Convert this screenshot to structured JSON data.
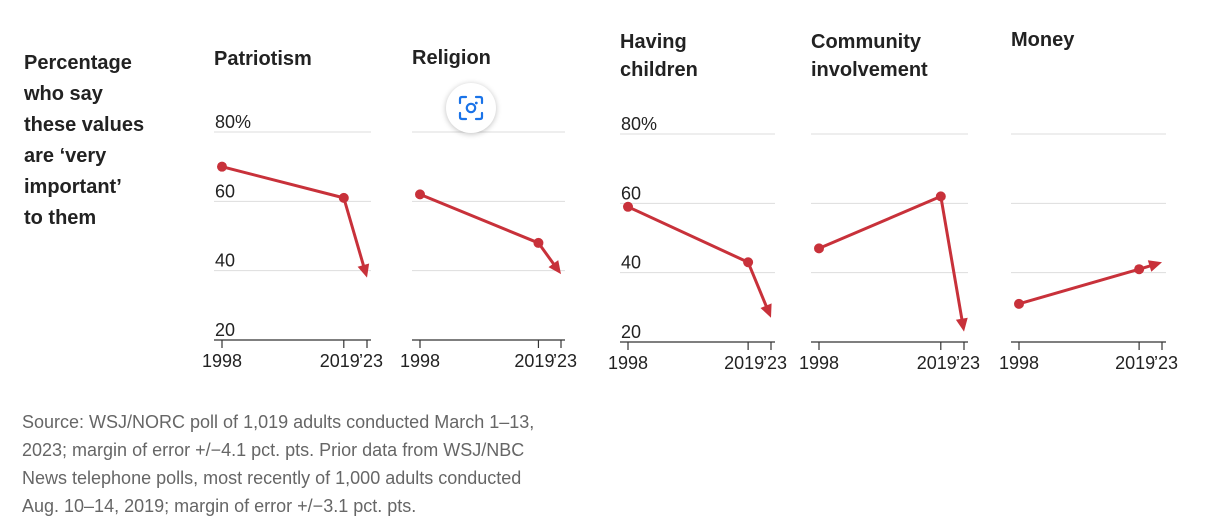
{
  "legend_lines": [
    "Percentage",
    "who say",
    "these values",
    "are ‘very",
    "important’",
    "to them"
  ],
  "source_lines": [
    "Source: WSJ/NORC poll of 1,019 adults conducted March 1–13,",
    "2023; margin of error +/−4.1 pct. pts. Prior data from WSJ/NBC",
    "News telephone polls, most recently of 1,000 adults conducted",
    "Aug. 10–14, 2019; margin of error +/−3.1 pct. pts."
  ],
  "colors": {
    "line": "#c8313a",
    "grid": "#dddddd",
    "axis": "#333333",
    "text": "#222222",
    "source": "#666666"
  },
  "overlay": {
    "icon": "scan-icon"
  },
  "chart_data": {
    "type": "line",
    "x": [
      "1998",
      "2019",
      "’23"
    ],
    "x_values": [
      1998,
      2019,
      2023
    ],
    "ylim": [
      20,
      80
    ],
    "yticks": [
      "80%",
      "60",
      "40",
      "20"
    ],
    "grid": true,
    "panels": [
      {
        "title_lines": [
          "Patriotism"
        ],
        "values": [
          70,
          61,
          38
        ],
        "show_y_labels": true
      },
      {
        "title_lines": [
          "Religion"
        ],
        "values": [
          62,
          48,
          39
        ],
        "show_y_labels": false
      },
      {
        "title_lines": [
          "Having",
          "children"
        ],
        "values": [
          59,
          43,
          27
        ],
        "show_y_labels": true
      },
      {
        "title_lines": [
          "Community",
          "involvement"
        ],
        "values": [
          47,
          62,
          23
        ],
        "show_y_labels": false
      },
      {
        "title_lines": [
          "Money"
        ],
        "values": [
          31,
          41,
          43
        ],
        "show_y_labels": false
      }
    ]
  }
}
